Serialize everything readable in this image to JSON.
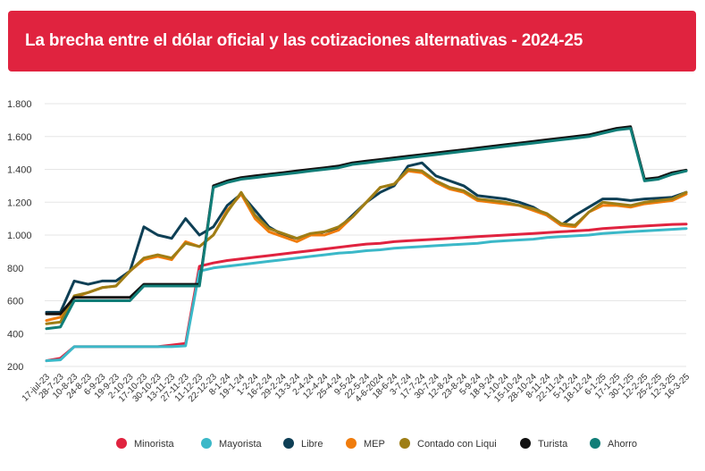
{
  "title": "La brecha entre el dólar oficial y las cotizaciones alternativas - 2024-25",
  "chart_data": {
    "type": "line",
    "title": "La brecha entre el dólar oficial y las cotizaciones alternativas - 2024-25",
    "xlabel": "",
    "ylabel": "",
    "ylim": [
      200,
      1800
    ],
    "yticks": [
      "200",
      "400",
      "600",
      "800",
      "1.000",
      "1.200",
      "1.400",
      "1.600",
      "1.800"
    ],
    "ytick_values": [
      200,
      400,
      600,
      800,
      1000,
      1200,
      1400,
      1600,
      1800
    ],
    "grid": true,
    "legend_position": "bottom",
    "x": [
      "17-jul-23",
      "28-7-23",
      "10-8-23",
      "24-8-23",
      "6-9-23",
      "19-9-23",
      "2-10-23",
      "17-10-23",
      "30-10-23",
      "13-11-23",
      "27-11-23",
      "11-12-23",
      "22-12-23",
      "8-1-24",
      "19-1-24",
      "1-2-24",
      "16-2-24",
      "29-2-24",
      "13-3-24",
      "2-4-24",
      "12-4-24",
      "25-4-24",
      "9-5-24",
      "22-5-24",
      "4-6-2024",
      "18-6-24",
      "3-7-24",
      "17-7-24",
      "30-7-24",
      "12-8-24",
      "23-8-24",
      "5-9-24",
      "18-9-24",
      "1-10-24",
      "15-10-24",
      "28-10-24",
      "8-11-24",
      "22-11-24",
      "5-12-24",
      "18-12-24",
      "6-1-25",
      "17-1-25",
      "30-1-25",
      "12-2-25",
      "25-2-25",
      "12-3-25",
      "16-3-25"
    ],
    "series": [
      {
        "name": "Minorista",
        "color": "#e0233f",
        "values": [
          235,
          250,
          320,
          320,
          320,
          320,
          320,
          320,
          320,
          330,
          340,
          810,
          830,
          845,
          855,
          865,
          875,
          885,
          895,
          905,
          915,
          925,
          935,
          945,
          950,
          960,
          965,
          970,
          975,
          980,
          985,
          990,
          995,
          1000,
          1005,
          1010,
          1015,
          1020,
          1025,
          1030,
          1040,
          1045,
          1050,
          1055,
          1060,
          1065,
          1067
        ]
      },
      {
        "name": "Mayorista",
        "color": "#3bb8c8",
        "values": [
          235,
          240,
          320,
          320,
          320,
          320,
          320,
          320,
          320,
          320,
          325,
          780,
          800,
          810,
          820,
          830,
          840,
          850,
          860,
          870,
          880,
          890,
          895,
          905,
          910,
          920,
          925,
          930,
          935,
          940,
          945,
          950,
          960,
          965,
          970,
          975,
          985,
          990,
          995,
          1000,
          1010,
          1015,
          1020,
          1025,
          1030,
          1035,
          1040
        ]
      },
      {
        "name": "Libre",
        "color": "#0e3f55",
        "values": [
          530,
          530,
          720,
          700,
          720,
          720,
          780,
          1050,
          1000,
          980,
          1100,
          1000,
          1050,
          1180,
          1250,
          1150,
          1050,
          1000,
          980,
          1000,
          1020,
          1040,
          1120,
          1200,
          1260,
          1300,
          1420,
          1440,
          1360,
          1330,
          1300,
          1240,
          1230,
          1220,
          1200,
          1170,
          1120,
          1060,
          1120,
          1170,
          1220,
          1220,
          1210,
          1220,
          1225,
          1230,
          1260
        ]
      },
      {
        "name": "MEP",
        "color": "#f07c0c",
        "values": [
          480,
          500,
          620,
          650,
          680,
          690,
          780,
          850,
          870,
          850,
          960,
          930,
          1000,
          1150,
          1250,
          1100,
          1020,
          990,
          960,
          1000,
          1000,
          1030,
          1110,
          1200,
          1290,
          1310,
          1390,
          1380,
          1320,
          1280,
          1260,
          1210,
          1200,
          1190,
          1180,
          1150,
          1120,
          1060,
          1050,
          1140,
          1180,
          1180,
          1170,
          1190,
          1200,
          1210,
          1250
        ]
      },
      {
        "name": "Contado con Liqui",
        "color": "#9e7e16",
        "values": [
          460,
          470,
          630,
          650,
          680,
          690,
          780,
          860,
          880,
          860,
          950,
          930,
          1000,
          1140,
          1260,
          1120,
          1040,
          1010,
          980,
          1010,
          1020,
          1050,
          1110,
          1200,
          1290,
          1310,
          1400,
          1390,
          1330,
          1290,
          1270,
          1220,
          1210,
          1200,
          1180,
          1160,
          1130,
          1070,
          1060,
          1140,
          1200,
          1190,
          1180,
          1200,
          1210,
          1220,
          1260
        ]
      },
      {
        "name": "Turista",
        "color": "#111111",
        "values": [
          520,
          520,
          620,
          620,
          620,
          620,
          620,
          700,
          700,
          700,
          700,
          700,
          1300,
          1330,
          1350,
          1360,
          1370,
          1380,
          1390,
          1400,
          1410,
          1420,
          1440,
          1450,
          1460,
          1470,
          1480,
          1490,
          1500,
          1510,
          1520,
          1530,
          1540,
          1550,
          1560,
          1570,
          1580,
          1590,
          1600,
          1610,
          1630,
          1650,
          1660,
          1340,
          1350,
          1380,
          1395
        ]
      },
      {
        "name": "Ahorro",
        "color": "#117e78",
        "values": [
          430,
          440,
          600,
          600,
          600,
          600,
          600,
          690,
          690,
          690,
          690,
          690,
          1290,
          1320,
          1340,
          1350,
          1360,
          1370,
          1380,
          1390,
          1400,
          1410,
          1430,
          1440,
          1450,
          1460,
          1470,
          1480,
          1490,
          1500,
          1510,
          1520,
          1530,
          1540,
          1550,
          1560,
          1570,
          1580,
          1590,
          1600,
          1620,
          1640,
          1650,
          1330,
          1340,
          1370,
          1390
        ]
      }
    ]
  }
}
